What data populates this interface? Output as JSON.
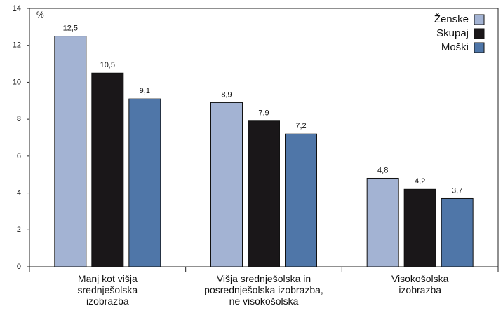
{
  "chart_data": {
    "type": "bar",
    "y_label": "%",
    "categories": [
      "Manj kot višja\nsrednješolska\nizobrazba",
      "Višja srednješolska in\nposrednješolska izobrazba,\nne visokošolska",
      "Visokošolska\nizobrazba"
    ],
    "series": [
      {
        "name": "Ženske",
        "color": "#a3b3d3",
        "values": [
          12.5,
          8.9,
          4.8
        ],
        "value_labels": [
          "12,5",
          "8,9",
          "4,8"
        ]
      },
      {
        "name": "Skupaj",
        "color": "#1a1719",
        "values": [
          10.5,
          7.9,
          4.2
        ],
        "value_labels": [
          "10,5",
          "7,9",
          "4,2"
        ]
      },
      {
        "name": "Moški",
        "color": "#4f76a8",
        "values": [
          9.1,
          7.2,
          3.7
        ],
        "value_labels": [
          "9,1",
          "7,2",
          "3,7"
        ]
      }
    ],
    "ylim": [
      0,
      14
    ],
    "yticks": [
      0,
      2,
      4,
      6,
      8,
      10,
      12,
      14
    ],
    "legend": "top-right"
  }
}
